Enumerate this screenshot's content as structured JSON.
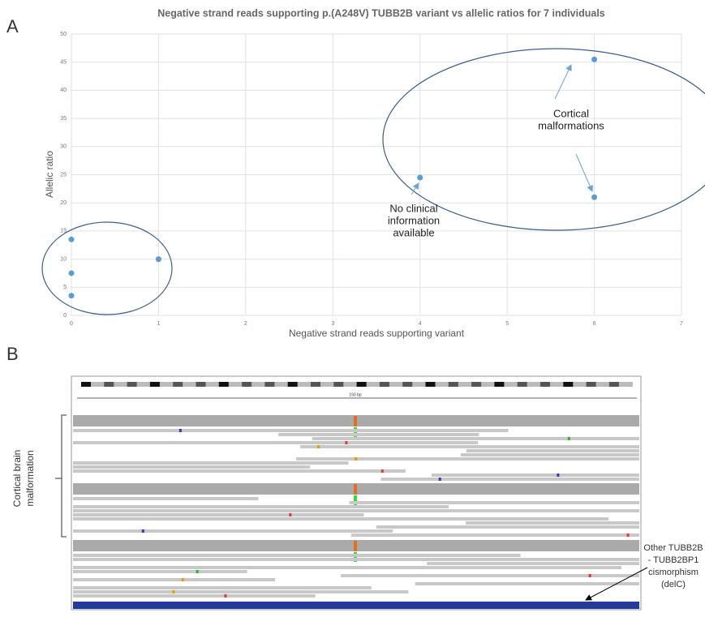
{
  "panel_labels": [
    "A",
    "B"
  ],
  "chart_data": {
    "type": "scatter",
    "title": "Negative strand reads supporting p.(A248V) TUBB2B variant vs allelic ratios for 7 individuals",
    "x_label": "Negative strand reads supporting variant",
    "y_label": "Allelic ratio",
    "x": [
      0,
      0,
      0,
      1,
      4,
      6,
      6
    ],
    "values": [
      13.5,
      7.5,
      3.5,
      10,
      24.5,
      45.5,
      21
    ],
    "color": "#5b9bd5",
    "xlim": [
      0,
      7
    ],
    "xticks": [
      0,
      1,
      2,
      3,
      4,
      5,
      6,
      7
    ],
    "ylim": [
      0,
      50
    ],
    "yticks": [
      0,
      5,
      10,
      15,
      20,
      25,
      30,
      35,
      40,
      45,
      50
    ],
    "grid": true,
    "annotations": [
      {
        "lines": [
          "No clinical",
          "information",
          "available"
        ]
      },
      {
        "lines": [
          "Cortical",
          "malformations"
        ]
      }
    ]
  },
  "panel_b": {
    "bp_label": "193 bp",
    "bracket_label": [
      "Cortical brain",
      "malformation"
    ],
    "note_lines": [
      "Other TUBB2B",
      "- TUBB2BP1",
      "cismorphism",
      "(delC)"
    ]
  }
}
